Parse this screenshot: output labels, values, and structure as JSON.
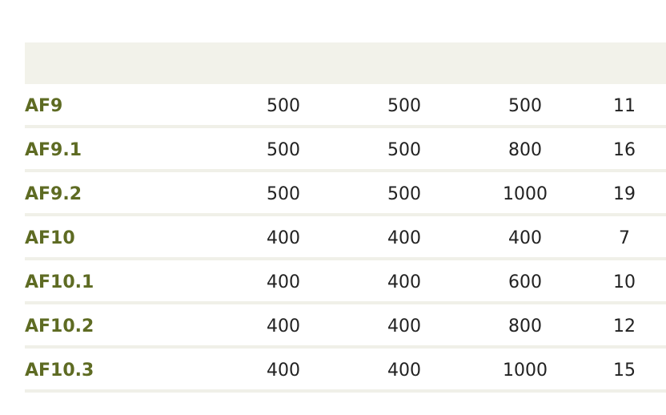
{
  "table": {
    "header": [
      "",
      "",
      "",
      "",
      ""
    ],
    "rows": [
      [
        "AF9",
        "500",
        "500",
        "500",
        "11"
      ],
      [
        "AF9.1",
        "500",
        "500",
        "800",
        "16"
      ],
      [
        "AF9.2",
        "500",
        "500",
        "1000",
        "19"
      ],
      [
        "AF10",
        "400",
        "400",
        "400",
        "7"
      ],
      [
        "AF10.1",
        "400",
        "400",
        "600",
        "10"
      ],
      [
        "AF10.2",
        "400",
        "400",
        "800",
        "12"
      ],
      [
        "AF10.3",
        "400",
        "400",
        "1000",
        "15"
      ]
    ]
  },
  "colors": {
    "header_bg": "#f2f2ea",
    "name_text": "#5e6b23",
    "divider": "#f0f0e8"
  }
}
